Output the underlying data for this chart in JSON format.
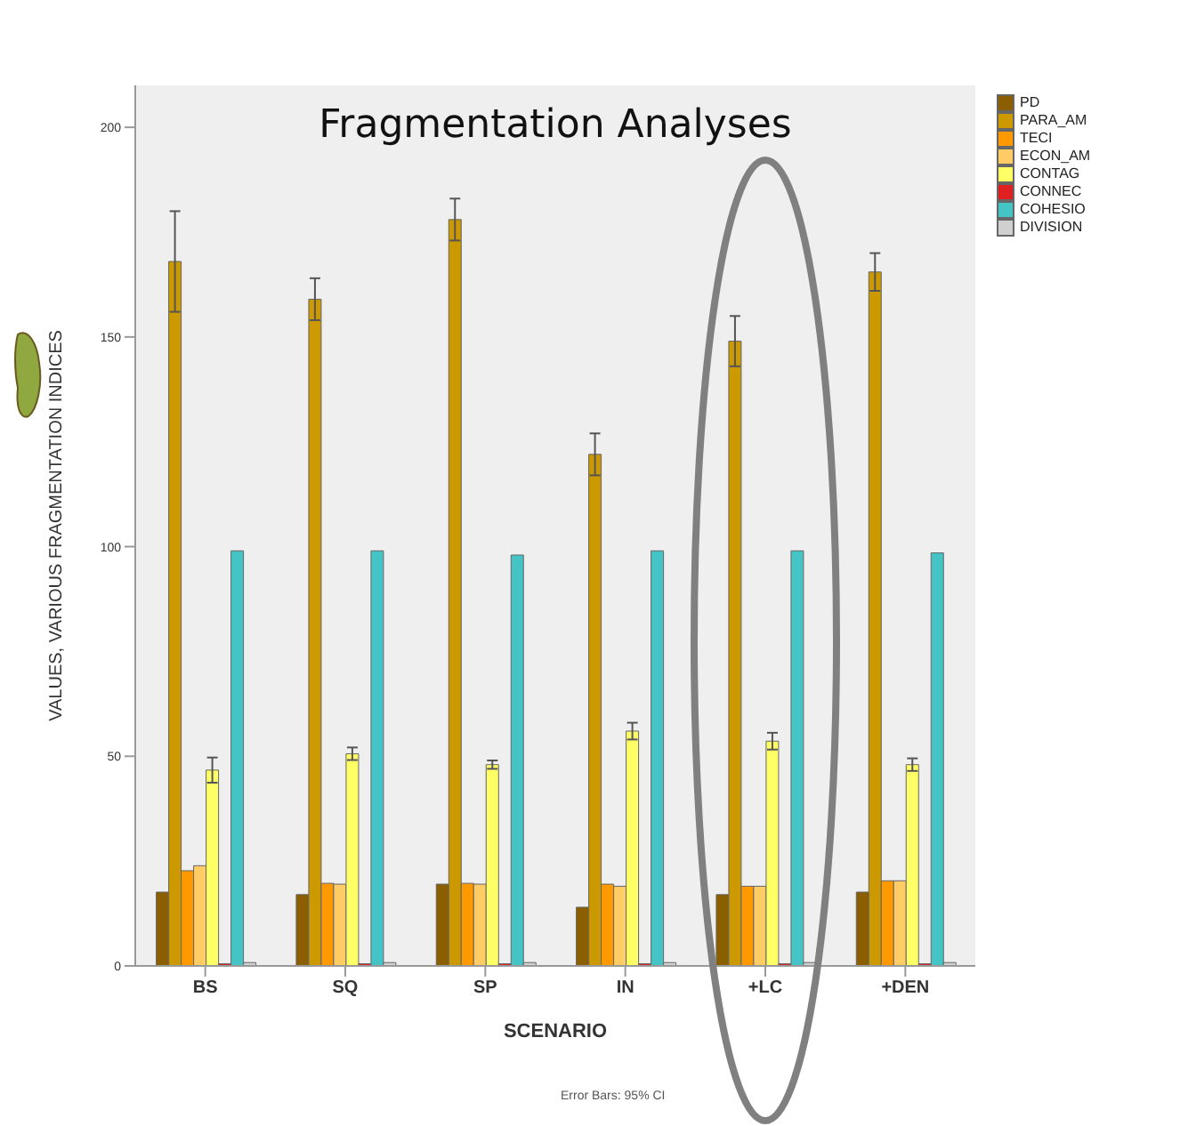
{
  "chart_data": {
    "type": "bar",
    "title": "Fragmentation Analyses",
    "xlabel": "SCENARIO",
    "ylabel": "VALUES, VARIOUS FRAGMENTATION INDICES",
    "annotations": [
      "Error Bars: 95% CI"
    ],
    "categories": [
      "BS",
      "SQ",
      "SP",
      "IN",
      "+LC",
      "+DEN"
    ],
    "ylim": [
      0,
      210
    ],
    "yticks": [
      0,
      50,
      100,
      150,
      200
    ],
    "legend": "top right",
    "series": [
      {
        "name": "PD",
        "color": "#8b5e00",
        "values": [
          17.6,
          17,
          19.5,
          14,
          17,
          17.6
        ]
      },
      {
        "name": "PARA_AM",
        "color": "#cc9900",
        "values": [
          168,
          159,
          178,
          122,
          149,
          165.5
        ],
        "errors": [
          12,
          5,
          5,
          5,
          6,
          4.5
        ]
      },
      {
        "name": "TECI",
        "color": "#ff9900",
        "values": [
          22.7,
          19.7,
          19.7,
          19.5,
          19,
          20.3
        ]
      },
      {
        "name": "ECON_AM",
        "color": "#ffcc66",
        "values": [
          23.9,
          19.5,
          19.5,
          19,
          19,
          20.3
        ]
      },
      {
        "name": "CONTAG",
        "color": "#ffff66",
        "values": [
          46.7,
          50.6,
          48,
          56,
          53.6,
          48
        ],
        "errors": [
          3,
          1.5,
          1,
          2,
          2,
          1.5
        ]
      },
      {
        "name": "CONNEC",
        "color": "#e02020",
        "values": [
          0.5,
          0.5,
          0.5,
          0.5,
          0.5,
          0.5
        ]
      },
      {
        "name": "COHESIO",
        "color": "#44c4c4",
        "values": [
          99,
          99,
          98,
          99,
          99,
          98.5
        ]
      },
      {
        "name": "DIVISION",
        "color": "#d0d0d0",
        "values": [
          0.8,
          0.8,
          0.8,
          0.8,
          0.8,
          0.8
        ]
      }
    ]
  }
}
